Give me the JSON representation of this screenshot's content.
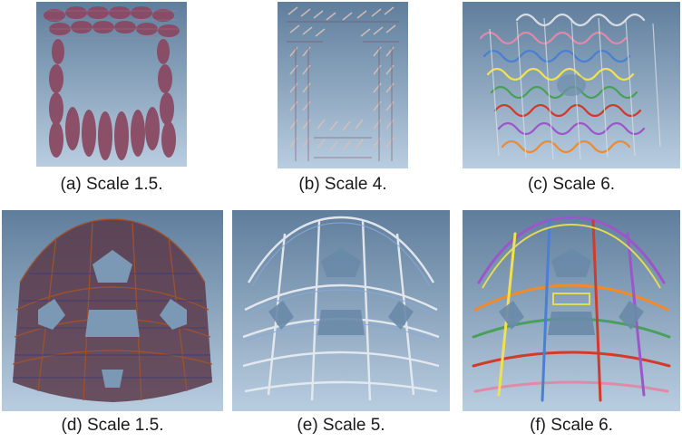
{
  "figure": {
    "panels": [
      {
        "id": "a",
        "caption": "(a) Scale 1.5."
      },
      {
        "id": "b",
        "caption": "(b) Scale 4."
      },
      {
        "id": "c",
        "caption": "(c) Scale 6."
      },
      {
        "id": "d",
        "caption": "(d) Scale 1.5."
      },
      {
        "id": "e",
        "caption": "(e) Scale 5."
      },
      {
        "id": "f",
        "caption": "(f) Scale 6."
      }
    ]
  },
  "colors": {
    "background_top": "#5f7e9c",
    "background_bottom": "#b9cde0",
    "strand_maroon": "#8a4a63",
    "strand_rust": "#a0522d",
    "strand_navy": "#3b3a7a",
    "strand_silver": "#d8dde3",
    "strand_pink": "#e08aa8",
    "strand_blue": "#4a7fd1",
    "strand_green": "#4aa05a",
    "strand_yellow": "#f2e24a",
    "strand_red": "#d23a2a",
    "strand_purple": "#9b57c9",
    "strand_orange": "#f08a2a"
  }
}
